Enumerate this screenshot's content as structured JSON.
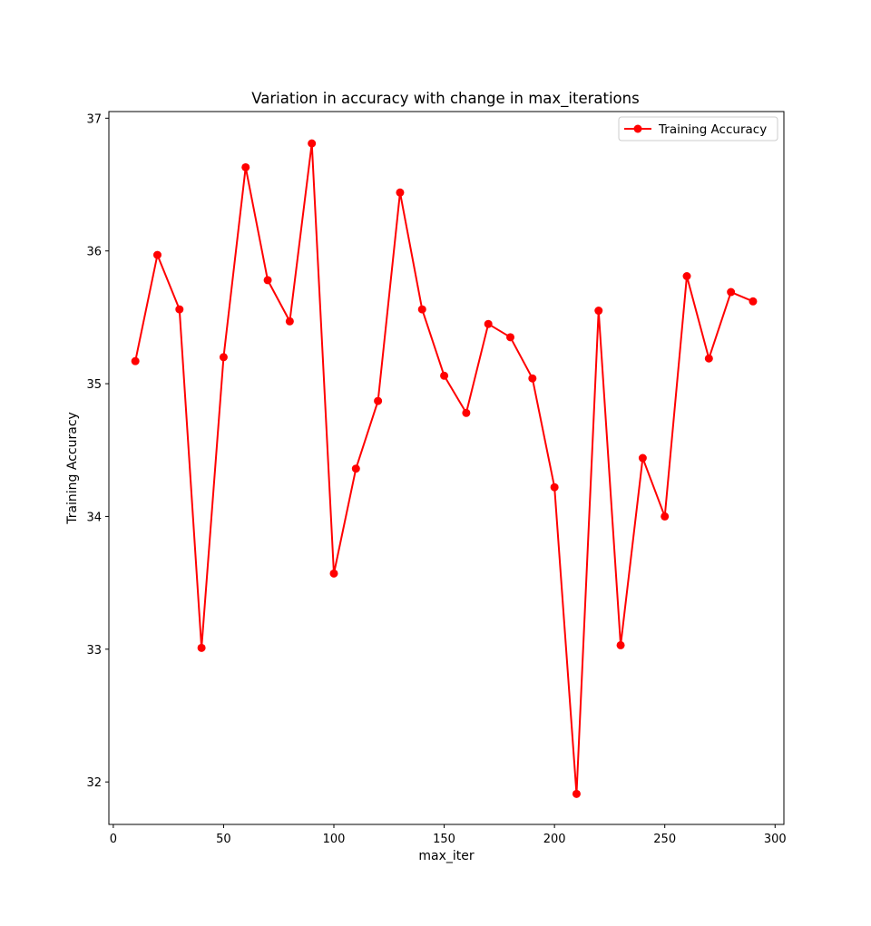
{
  "chart_data": {
    "type": "line",
    "title": "Variation in accuracy with change in max_iterations",
    "xlabel": "max_iter",
    "ylabel": "Training Accuracy",
    "xlim": [
      -2,
      304
    ],
    "ylim": [
      31.68,
      37.05
    ],
    "xticks": [
      0,
      50,
      100,
      150,
      200,
      250,
      300
    ],
    "yticks": [
      32,
      33,
      34,
      35,
      36,
      37
    ],
    "legend_position": "upper right",
    "grid": false,
    "series": [
      {
        "name": "Training Accuracy",
        "color": "#ff0000",
        "marker": "circle",
        "x": [
          10,
          20,
          30,
          40,
          50,
          60,
          70,
          80,
          90,
          100,
          110,
          120,
          130,
          140,
          150,
          160,
          170,
          180,
          190,
          200,
          210,
          220,
          230,
          240,
          250,
          260,
          270,
          280,
          290
        ],
        "y": [
          35.17,
          35.97,
          35.56,
          33.01,
          35.2,
          36.63,
          35.78,
          35.47,
          36.81,
          33.57,
          34.36,
          34.87,
          36.44,
          35.56,
          35.06,
          34.78,
          35.45,
          35.35,
          35.04,
          34.22,
          31.91,
          35.55,
          33.03,
          34.44,
          34.0,
          35.81,
          35.19,
          35.69,
          35.62
        ]
      }
    ]
  }
}
